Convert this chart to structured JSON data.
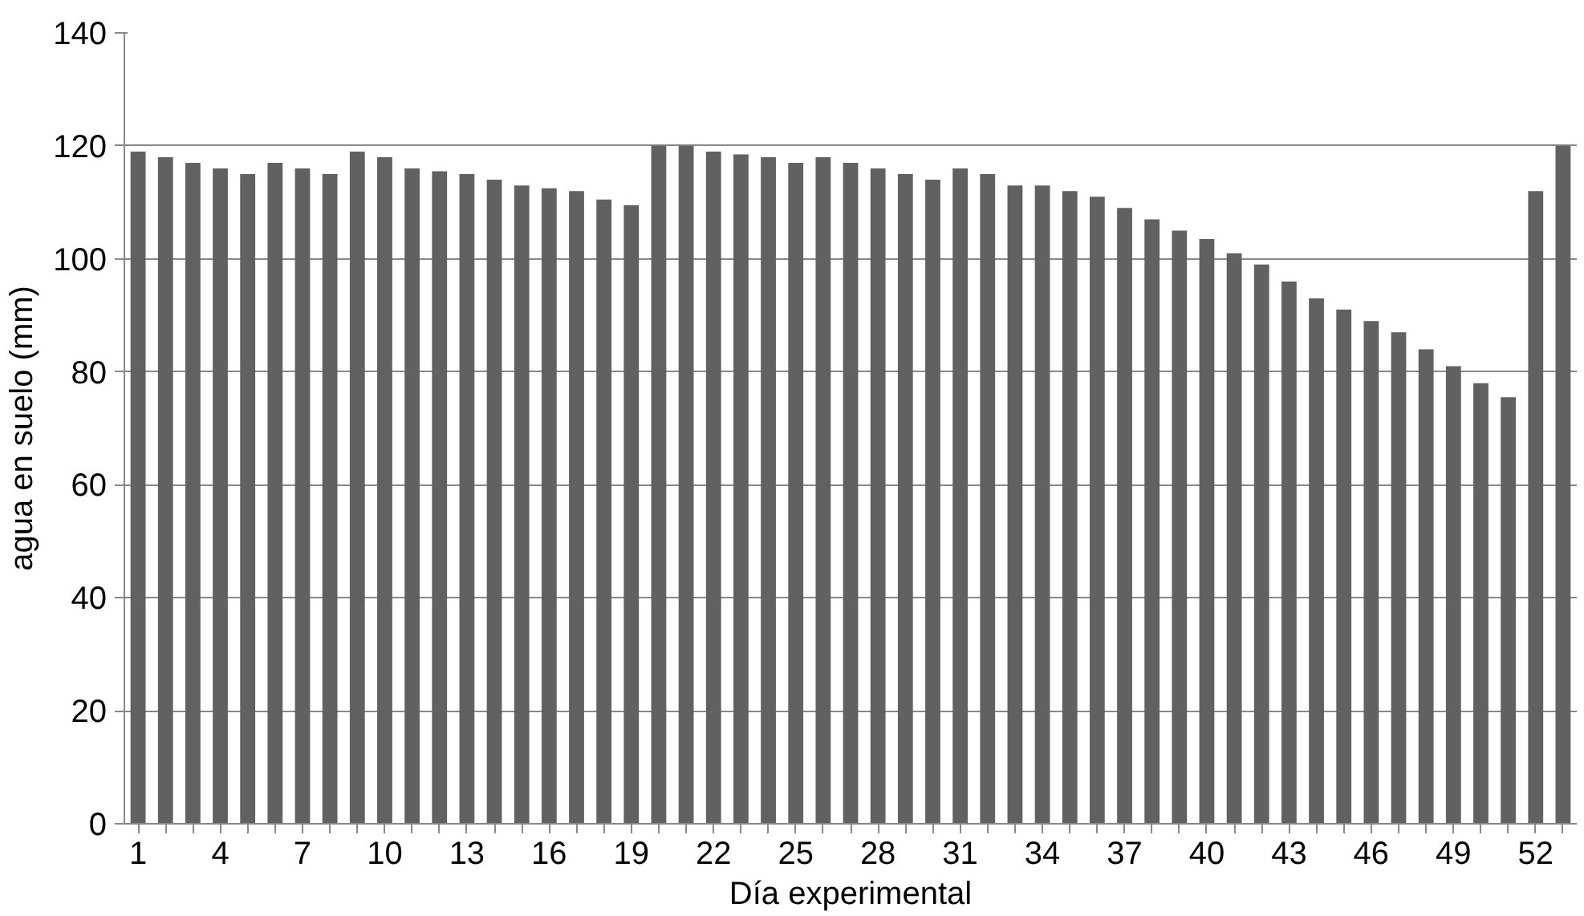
{
  "chart_data": {
    "type": "bar",
    "xlabel": "Día experimental",
    "ylabel": "agua en suelo (mm)",
    "categories": [
      "1",
      null,
      null,
      "4",
      null,
      null,
      "7",
      null,
      null,
      "10",
      null,
      null,
      "13",
      null,
      null,
      "16",
      null,
      null,
      "19",
      null,
      null,
      "22",
      null,
      null,
      "25",
      null,
      null,
      "28",
      null,
      null,
      "31",
      null,
      null,
      "34",
      null,
      null,
      "37",
      null,
      null,
      "40",
      null,
      null,
      "43",
      null,
      null,
      "46",
      null,
      null,
      "49",
      null,
      null,
      "52",
      null
    ],
    "values": [
      119,
      118,
      117,
      116,
      115,
      117,
      116,
      115,
      119,
      118,
      116,
      115.5,
      115,
      114,
      113,
      112.5,
      112,
      110.5,
      109.5,
      120,
      120,
      119,
      118.5,
      118,
      117,
      118,
      117,
      116,
      115,
      114,
      116,
      115,
      113,
      113,
      112,
      111,
      109,
      107,
      105,
      103.5,
      101,
      99,
      96,
      93,
      91,
      89,
      87,
      84,
      81,
      78,
      75.5,
      112,
      120
    ],
    "color": "#616161",
    "ylim": [
      0,
      140
    ],
    "yticks": [
      0,
      20,
      40,
      60,
      80,
      100,
      120,
      140
    ],
    "grid": "y"
  }
}
